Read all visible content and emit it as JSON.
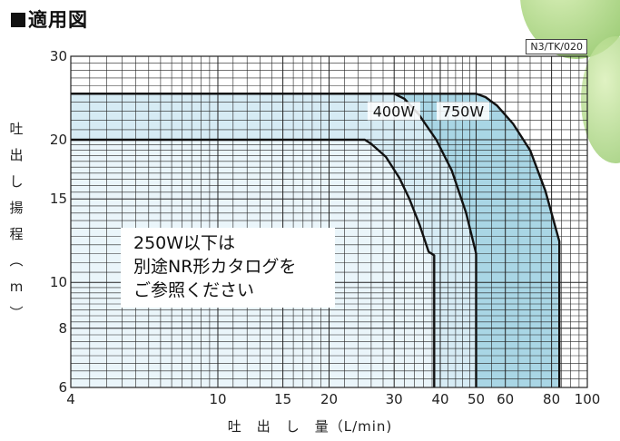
{
  "page": {
    "title": "適用図",
    "code": "N3/TK/020",
    "y_axis_label_chars": [
      "吐",
      "出",
      "し",
      "揚",
      "程",
      "︵",
      "m",
      "︶"
    ],
    "x_axis_label": "吐　出　し　量（L/min)",
    "note_lines": [
      "250W以下は",
      "別途NR形カタログを",
      "ご参照ください"
    ]
  },
  "chart_data": {
    "type": "area",
    "title": "適用図",
    "xlabel": "吐出し量 (L/min)",
    "ylabel": "吐出し揚程 (m)",
    "xscale": "log",
    "yscale": "log",
    "xlim": [
      4,
      100
    ],
    "ylim": [
      6,
      30
    ],
    "xticks": [
      4,
      10,
      15,
      20,
      30,
      40,
      50,
      60,
      80,
      100
    ],
    "yticks": [
      6,
      8,
      10,
      15,
      20,
      30
    ],
    "grid": true,
    "series": [
      {
        "name": "750W",
        "fill": "#a9d6e5",
        "points": [
          [
            4,
            25
          ],
          [
            50,
            25
          ],
          [
            53,
            24.6
          ],
          [
            57,
            23.6
          ],
          [
            63,
            21.6
          ],
          [
            70,
            19
          ],
          [
            77,
            15.6
          ],
          [
            84,
            12.2
          ],
          [
            84,
            6
          ]
        ]
      },
      {
        "name": "400W",
        "fill": "#d6ebf4",
        "points": [
          [
            4,
            25
          ],
          [
            30,
            25
          ],
          [
            32,
            24.4
          ],
          [
            35,
            22.6
          ],
          [
            39,
            20
          ],
          [
            43,
            17.2
          ],
          [
            47,
            14
          ],
          [
            50,
            11.5
          ],
          [
            50,
            6
          ]
        ]
      },
      {
        "name": "",
        "fill": "#eaf5fa",
        "points": [
          [
            4,
            20
          ],
          [
            25,
            20
          ],
          [
            26,
            19.6
          ],
          [
            28.5,
            18.4
          ],
          [
            31,
            16.6
          ],
          [
            33,
            15
          ],
          [
            35.2,
            13.2
          ],
          [
            37.2,
            11.6
          ],
          [
            38.5,
            11.4
          ],
          [
            38.5,
            6
          ]
        ]
      }
    ],
    "labels": [
      {
        "text": "400W",
        "x": 26,
        "y": 23
      },
      {
        "text": "750W",
        "x": 40,
        "y": 23
      }
    ]
  }
}
